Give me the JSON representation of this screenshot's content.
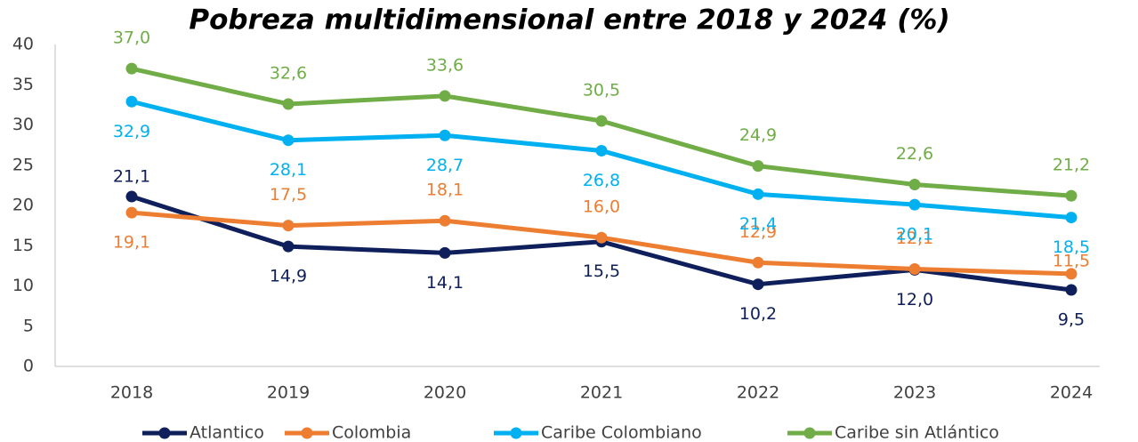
{
  "chart_data": {
    "type": "line",
    "title": "Pobreza multidimensional entre 2018 y 2024 (%)",
    "categories": [
      "2018",
      "2019",
      "2020",
      "2021",
      "2022",
      "2023",
      "2024"
    ],
    "series": [
      {
        "name": "Atlantico",
        "color": "#0e1f5b",
        "values": [
          21.1,
          14.9,
          14.1,
          15.5,
          10.2,
          12.0,
          9.5
        ],
        "value_labels": [
          "21,1",
          "14,9",
          "14,1",
          "15,5",
          "10,2",
          "12,0",
          "9,5"
        ]
      },
      {
        "name": "Colombia",
        "color": "#ed7d31",
        "values": [
          19.1,
          17.5,
          18.1,
          16.0,
          12.9,
          12.1,
          11.5
        ],
        "value_labels": [
          "19,1",
          "17,5",
          "18,1",
          "16,0",
          "12,9",
          "12,1",
          "11,5"
        ]
      },
      {
        "name": "Caribe Colombiano",
        "color": "#00b0f0",
        "values": [
          32.9,
          28.1,
          28.7,
          26.8,
          21.4,
          20.1,
          18.5
        ],
        "value_labels": [
          "32,9",
          "28,1",
          "28,7",
          "26,8",
          "21,4",
          "20,1",
          "18,5"
        ]
      },
      {
        "name": "Caribe sin Atlántico",
        "color": "#70ad47",
        "values": [
          37.0,
          32.6,
          33.6,
          30.5,
          24.9,
          22.6,
          21.2
        ],
        "value_labels": [
          "37,0",
          "32,6",
          "33,6",
          "30,5",
          "24,9",
          "22,6",
          "21,2"
        ]
      }
    ],
    "ylim": [
      0,
      40
    ],
    "yticks": [
      0,
      5,
      10,
      15,
      20,
      25,
      30,
      35,
      40
    ],
    "grid": false,
    "legend": "bottom"
  }
}
